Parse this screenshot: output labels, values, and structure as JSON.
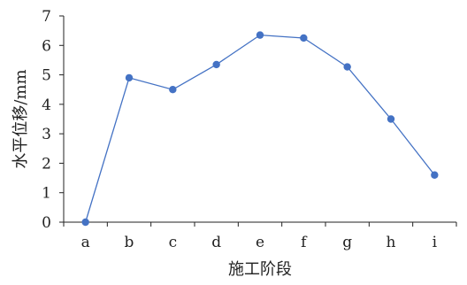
{
  "chart_data": {
    "type": "line",
    "categories": [
      "a",
      "b",
      "c",
      "d",
      "e",
      "f",
      "g",
      "h",
      "i"
    ],
    "series": [
      {
        "values": [
          0,
          4.9,
          4.5,
          5.35,
          6.35,
          6.25,
          5.27,
          3.5,
          1.6
        ]
      }
    ],
    "xlabel": "施工阶段",
    "ylabel": "水平位移/mm",
    "ylim": [
      0,
      7
    ],
    "yticks": [
      0,
      1,
      2,
      3,
      4,
      5,
      6,
      7
    ],
    "grid": false,
    "legend": "none",
    "colors": {
      "series": "#4472C4",
      "axis": "#222222"
    }
  }
}
